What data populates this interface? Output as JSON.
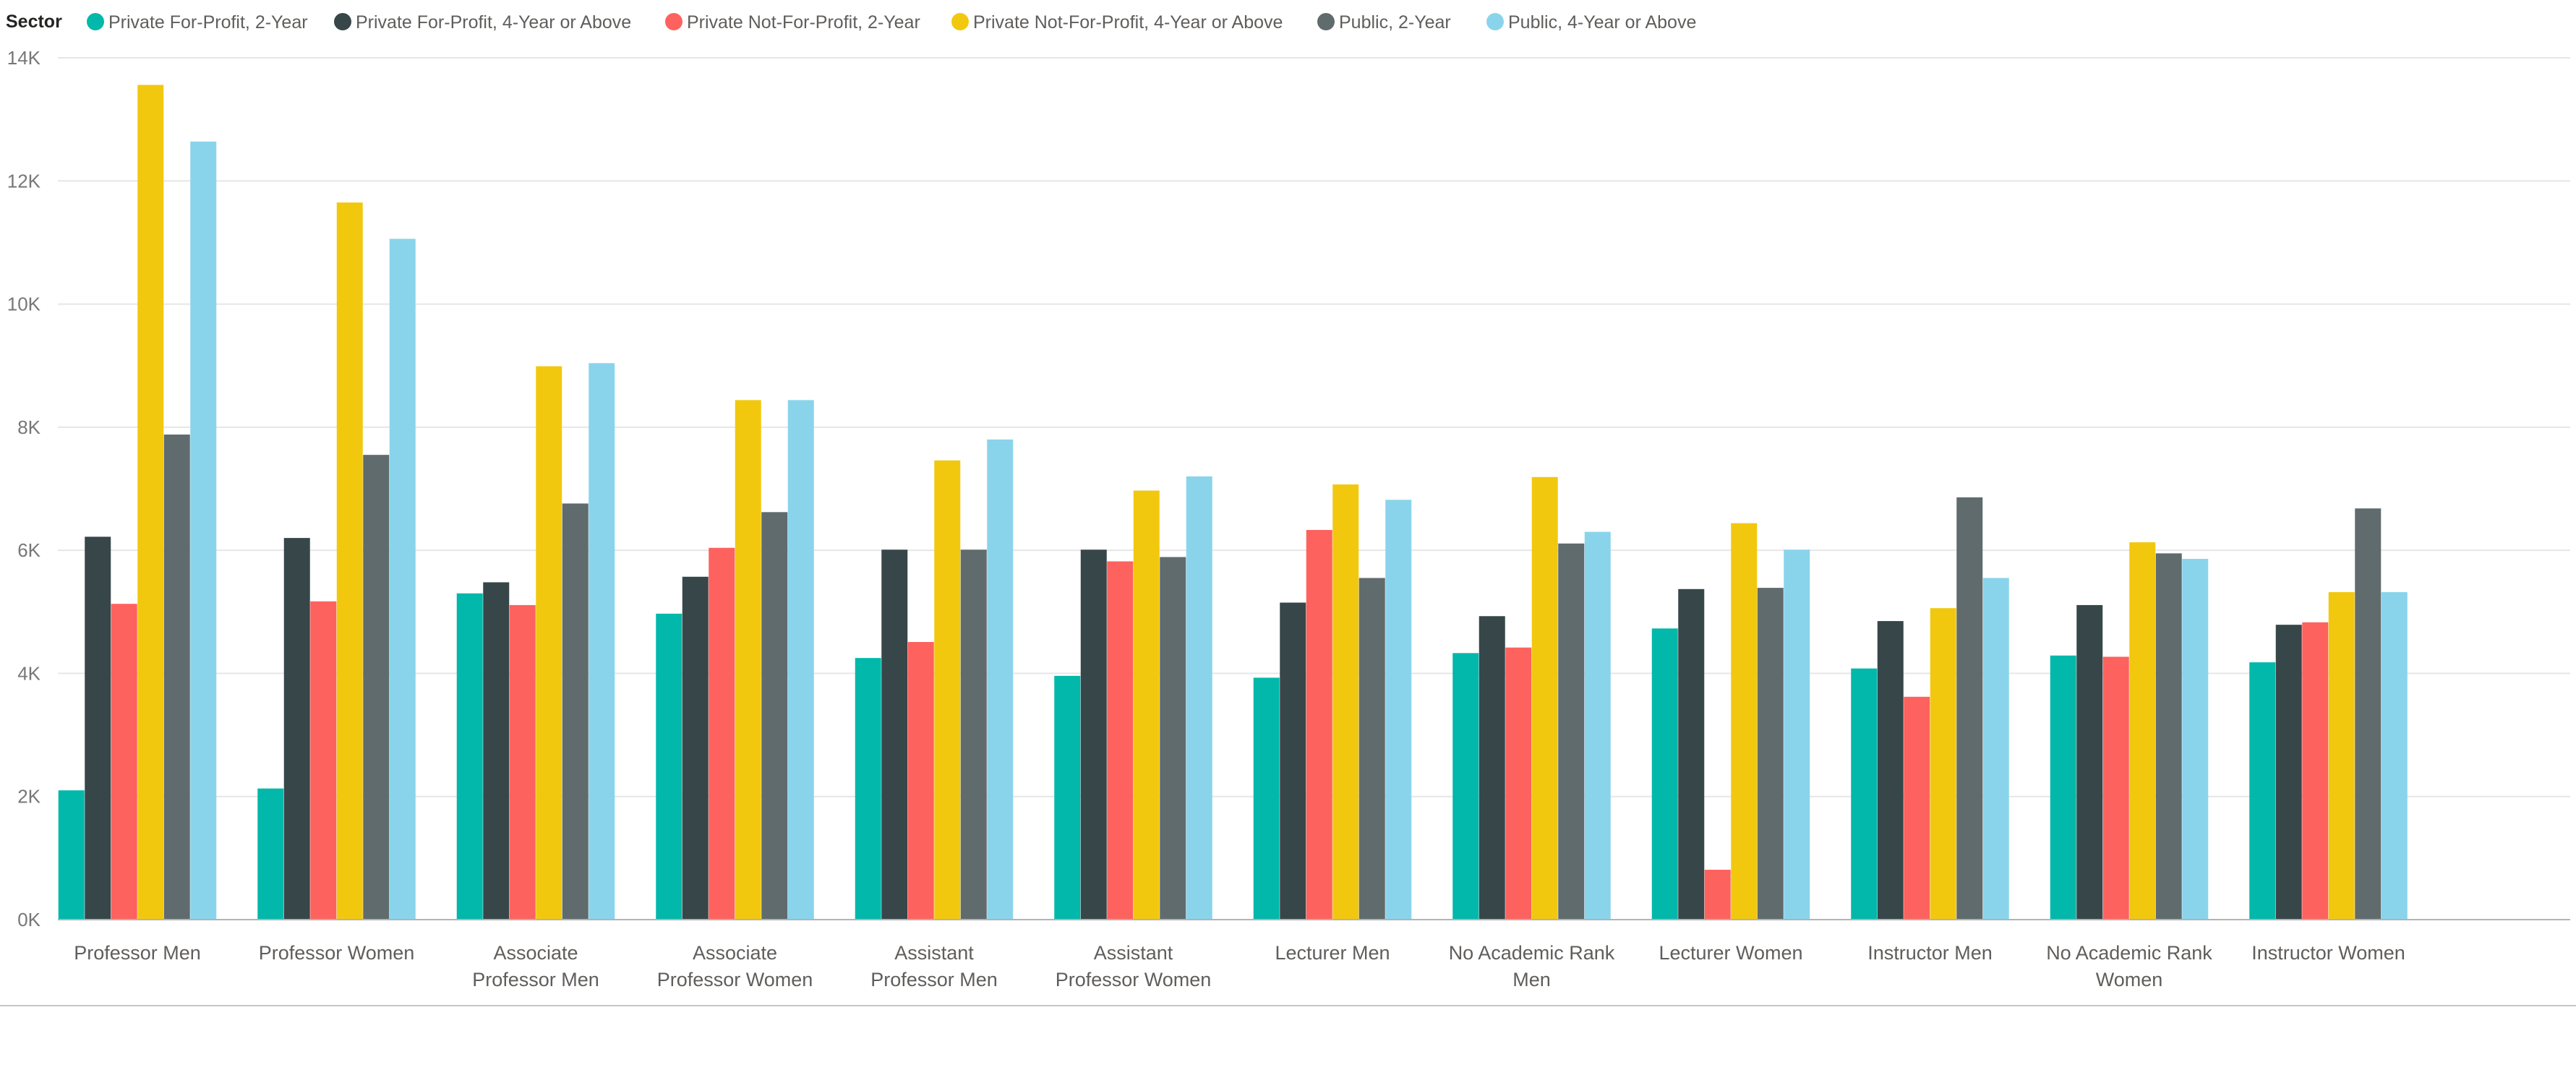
{
  "chart_data": {
    "type": "bar",
    "legend_title": "Sector",
    "legend_position": "top-left",
    "categories": [
      "Professor Men",
      "Professor Women",
      "Associate Professor Men",
      "Associate Professor Women",
      "Assistant Professor Men",
      "Assistant Professor Women",
      "Lecturer Men",
      "No Academic Rank Men",
      "Lecturer Women",
      "Instructor Men",
      "No Academic Rank Women",
      "Instructor Women"
    ],
    "series": [
      {
        "name": "Private For-Profit, 2-Year",
        "color": "#01B8AA",
        "values": [
          2100,
          2130,
          5300,
          4970,
          4250,
          3960,
          3930,
          4330,
          4730,
          4080,
          4290,
          4180
        ]
      },
      {
        "name": "Private For-Profit, 4-Year or Above",
        "color": "#374649",
        "values": [
          6220,
          6200,
          5480,
          5570,
          6010,
          6010,
          5150,
          4930,
          5370,
          4850,
          5110,
          4790
        ]
      },
      {
        "name": "Private Not-For-Profit, 2-Year",
        "color": "#FD625E",
        "values": [
          5130,
          5170,
          5110,
          6040,
          4510,
          5820,
          6330,
          4420,
          810,
          3620,
          4270,
          4830
        ]
      },
      {
        "name": "Private Not-For-Profit, 4-Year or Above",
        "color": "#F2C80F",
        "values": [
          13560,
          11650,
          8990,
          8440,
          7460,
          6970,
          7070,
          7190,
          6440,
          5060,
          6130,
          5320
        ]
      },
      {
        "name": "Public, 2-Year",
        "color": "#5F6B6D",
        "values": [
          7880,
          7550,
          6760,
          6620,
          6010,
          5890,
          5550,
          6110,
          5390,
          6860,
          5950,
          6680
        ]
      },
      {
        "name": "Public, 4-Year or Above",
        "color": "#8AD4EB",
        "values": [
          12640,
          11060,
          9040,
          8440,
          7800,
          7200,
          6820,
          6300,
          6010,
          5550,
          5860,
          5320
        ]
      }
    ],
    "ylim": [
      0,
      14000
    ],
    "yticks": [
      0,
      2000,
      4000,
      6000,
      8000,
      10000,
      12000,
      14000
    ],
    "ytick_labels": [
      "0K",
      "2K",
      "4K",
      "6K",
      "8K",
      "10K",
      "12K",
      "14K"
    ],
    "grid": true,
    "title": "",
    "xlabel": "",
    "ylabel": ""
  }
}
